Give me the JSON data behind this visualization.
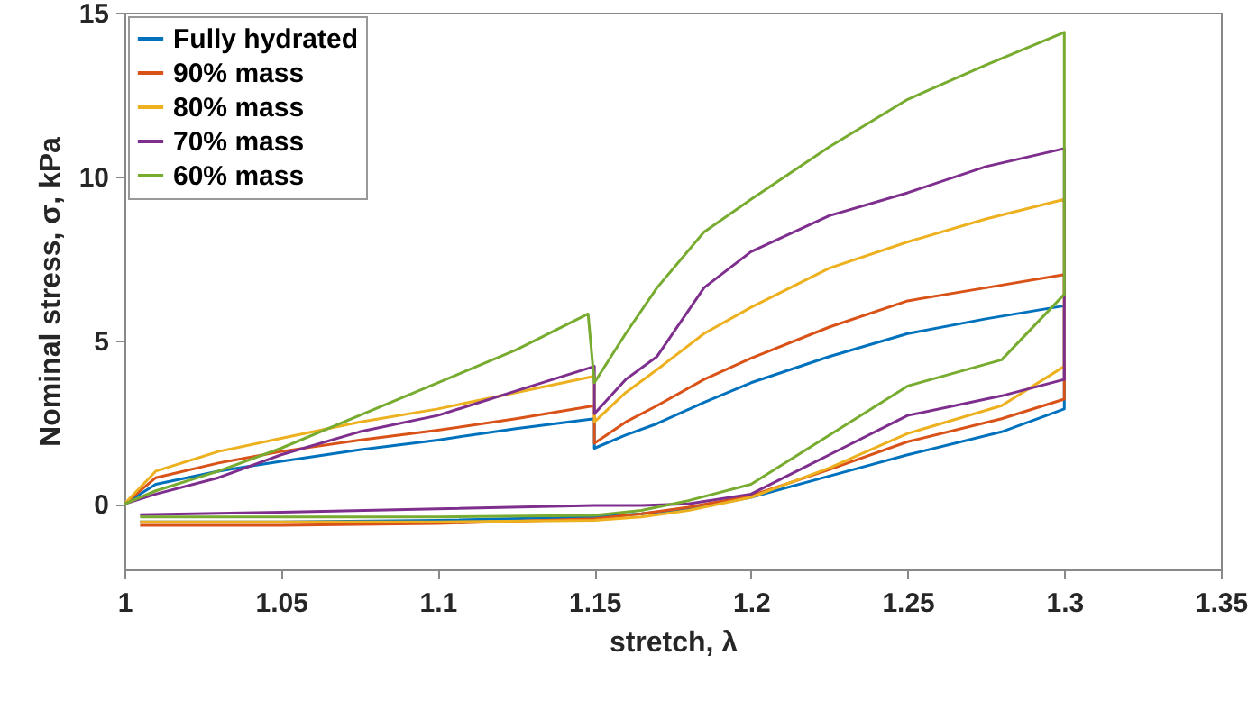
{
  "chart_data": {
    "type": "line",
    "xlabel": "stretch, λ",
    "ylabel": "Nominal stress, σ, kPa",
    "xlim": [
      1,
      1.35
    ],
    "xticks": [
      1,
      1.05,
      1.1,
      1.15,
      1.2,
      1.25,
      1.3,
      1.35
    ],
    "ylim": [
      -2,
      15
    ],
    "yticks": [
      0,
      5,
      10,
      15
    ],
    "grid": false,
    "legend": "top left",
    "series": [
      {
        "name": "Fully hydrated",
        "color": "#0072bd",
        "x": [
          1,
          1.01,
          1.03,
          1.05,
          1.075,
          1.1,
          1.125,
          1.15,
          1.15,
          1.16,
          1.17,
          1.185,
          1.2,
          1.225,
          1.25,
          1.275,
          1.3,
          1.3,
          1.28,
          1.25,
          1.225,
          1.2,
          1.18,
          1.165,
          1.15,
          1.1,
          1.05,
          1.005
        ],
        "values": [
          0,
          0.6,
          1.0,
          1.3,
          1.65,
          1.95,
          2.3,
          2.6,
          1.7,
          2.1,
          2.45,
          3.1,
          3.7,
          4.5,
          5.2,
          5.65,
          6.05,
          2.9,
          2.2,
          1.5,
          0.85,
          0.2,
          -0.15,
          -0.3,
          -0.4,
          -0.5,
          -0.55,
          -0.55
        ]
      },
      {
        "name": "90% mass",
        "color": "#d95319",
        "x": [
          1,
          1.01,
          1.03,
          1.05,
          1.075,
          1.1,
          1.125,
          1.15,
          1.15,
          1.16,
          1.17,
          1.185,
          1.2,
          1.225,
          1.25,
          1.275,
          1.3,
          1.3,
          1.28,
          1.25,
          1.225,
          1.2,
          1.18,
          1.165,
          1.15,
          1.1,
          1.05,
          1.005
        ],
        "values": [
          0,
          0.8,
          1.25,
          1.6,
          1.95,
          2.25,
          2.6,
          3.0,
          1.85,
          2.5,
          3.0,
          3.8,
          4.45,
          5.4,
          6.2,
          6.6,
          7.0,
          3.2,
          2.6,
          1.9,
          1.05,
          0.25,
          -0.1,
          -0.3,
          -0.45,
          -0.6,
          -0.65,
          -0.65
        ]
      },
      {
        "name": "80% mass",
        "color": "#edb120",
        "x": [
          1,
          1.01,
          1.03,
          1.05,
          1.075,
          1.1,
          1.125,
          1.15,
          1.15,
          1.16,
          1.17,
          1.185,
          1.2,
          1.225,
          1.25,
          1.275,
          1.3,
          1.3,
          1.28,
          1.25,
          1.225,
          1.2,
          1.18,
          1.165,
          1.15,
          1.1,
          1.05,
          1.005
        ],
        "values": [
          0,
          1.0,
          1.6,
          2.0,
          2.5,
          2.9,
          3.4,
          3.9,
          2.5,
          3.4,
          4.1,
          5.2,
          6.0,
          7.2,
          8.0,
          8.7,
          9.3,
          4.2,
          3.0,
          2.15,
          1.1,
          0.2,
          -0.2,
          -0.4,
          -0.5,
          -0.55,
          -0.55,
          -0.55
        ]
      },
      {
        "name": "70% mass",
        "color": "#7e2f8e",
        "x": [
          1,
          1.01,
          1.03,
          1.05,
          1.075,
          1.1,
          1.125,
          1.15,
          1.15,
          1.16,
          1.17,
          1.185,
          1.2,
          1.225,
          1.25,
          1.275,
          1.3,
          1.3,
          1.28,
          1.25,
          1.225,
          1.2,
          1.18,
          1.165,
          1.15,
          1.1,
          1.05,
          1.005
        ],
        "values": [
          0,
          0.3,
          0.8,
          1.5,
          2.2,
          2.7,
          3.45,
          4.2,
          2.75,
          3.8,
          4.5,
          6.6,
          7.7,
          8.8,
          9.5,
          10.3,
          10.85,
          3.8,
          3.3,
          2.7,
          1.5,
          0.3,
          0,
          -0.05,
          -0.05,
          -0.15,
          -0.25,
          -0.33
        ]
      },
      {
        "name": "60% mass",
        "color": "#77ac30",
        "x": [
          1,
          1.01,
          1.03,
          1.05,
          1.075,
          1.1,
          1.125,
          1.148,
          1.15,
          1.16,
          1.17,
          1.185,
          1.2,
          1.225,
          1.25,
          1.275,
          1.3,
          1.3,
          1.28,
          1.25,
          1.225,
          1.2,
          1.18,
          1.165,
          1.15,
          1.1,
          1.05,
          1.005
        ],
        "values": [
          0,
          0.4,
          1.0,
          1.7,
          2.7,
          3.7,
          4.7,
          5.8,
          3.7,
          5.2,
          6.6,
          8.3,
          9.3,
          10.9,
          12.35,
          13.4,
          14.4,
          6.4,
          4.4,
          3.6,
          2.1,
          0.6,
          0.1,
          -0.2,
          -0.35,
          -0.4,
          -0.4,
          -0.4
        ]
      }
    ]
  }
}
